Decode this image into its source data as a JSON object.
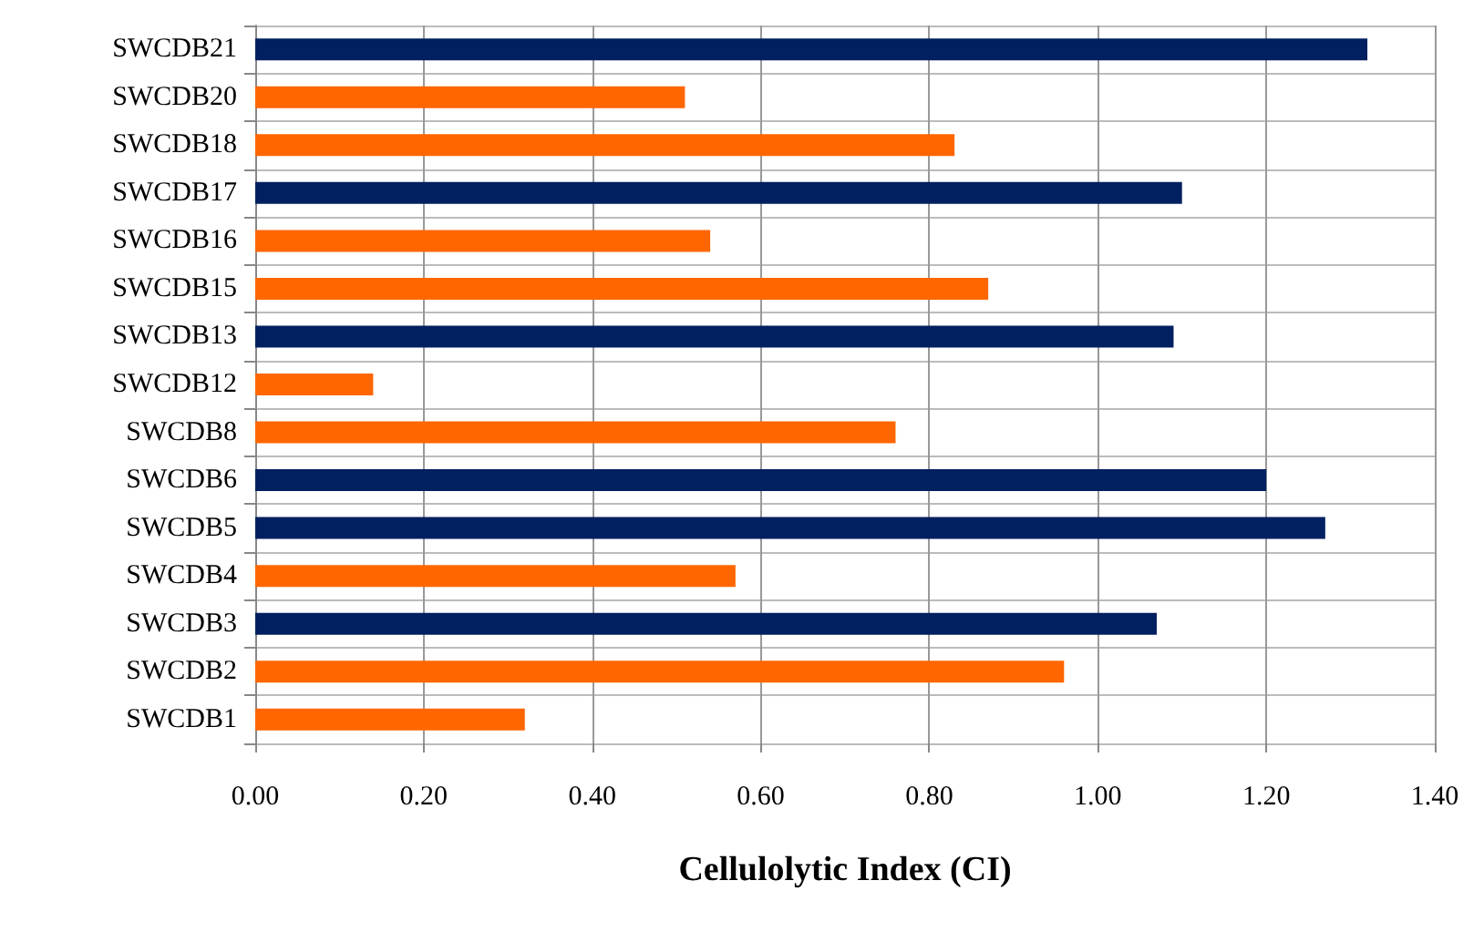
{
  "chart_data": {
    "type": "bar",
    "orientation": "horizontal",
    "xlabel": "Cellulolytic Index (CI)",
    "categories": [
      "SWCDB21",
      "SWCDB20",
      "SWCDB18",
      "SWCDB17",
      "SWCDB16",
      "SWCDB15",
      "SWCDB13",
      "SWCDB12",
      "SWCDB8",
      "SWCDB6",
      "SWCDB5",
      "SWCDB4",
      "SWCDB3",
      "SWCDB2",
      "SWCDB1"
    ],
    "values": [
      1.32,
      0.51,
      0.83,
      1.1,
      0.54,
      0.87,
      1.09,
      0.14,
      0.76,
      1.2,
      1.27,
      0.57,
      1.07,
      0.96,
      0.32
    ],
    "colors": [
      "#002060",
      "#ff6600",
      "#ff6600",
      "#002060",
      "#ff6600",
      "#ff6600",
      "#002060",
      "#ff6600",
      "#ff6600",
      "#002060",
      "#002060",
      "#ff6600",
      "#002060",
      "#ff6600",
      "#ff6600"
    ],
    "xlim": [
      0,
      1.4
    ],
    "xticks": [
      {
        "value": 0,
        "label": "0.00"
      },
      {
        "value": 0.2,
        "label": "0.20"
      },
      {
        "value": 0.4,
        "label": "0.40"
      },
      {
        "value": 0.6,
        "label": "0.60"
      },
      {
        "value": 0.8,
        "label": "0.80"
      },
      {
        "value": 1,
        "label": "1.00"
      },
      {
        "value": 1.2,
        "label": "1.20"
      },
      {
        "value": 1.4,
        "label": "1.40"
      }
    ],
    "grid": true
  }
}
